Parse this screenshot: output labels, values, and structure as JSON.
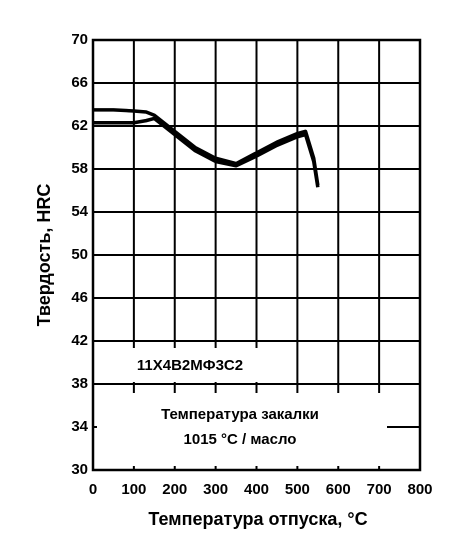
{
  "chart_data": {
    "type": "line",
    "x_label": "Температура отпуска, °C",
    "y_label": "Твердость, HRC",
    "annotations": [
      "11Х4В2МФ3С2",
      "Температура закалки",
      "1015 °C / масло"
    ],
    "x": [
      0,
      50,
      100,
      130,
      150,
      200,
      250,
      300,
      350,
      400,
      450,
      500,
      520,
      540,
      550
    ],
    "series": [
      {
        "color": "#000000",
        "values": [
          63.5,
          63.5,
          63.4,
          63.3,
          63.0,
          61.5,
          60.0,
          59.0,
          58.5,
          59.5,
          60.5,
          61.3,
          61.5,
          59.0,
          56.5
        ]
      },
      {
        "color": "#000000",
        "values": [
          62.3,
          62.3,
          62.3,
          62.5,
          62.7,
          61.2,
          59.7,
          58.7,
          58.3,
          59.2,
          60.2,
          61.0,
          61.2,
          58.7,
          56.3
        ]
      }
    ],
    "xlim": [
      0,
      800
    ],
    "xticks": [
      0,
      100,
      200,
      300,
      400,
      500,
      600,
      700,
      800
    ],
    "ylim": [
      30,
      70
    ],
    "yticks": [
      30,
      34,
      38,
      42,
      46,
      50,
      54,
      58,
      62,
      66,
      70
    ],
    "grid": true
  }
}
